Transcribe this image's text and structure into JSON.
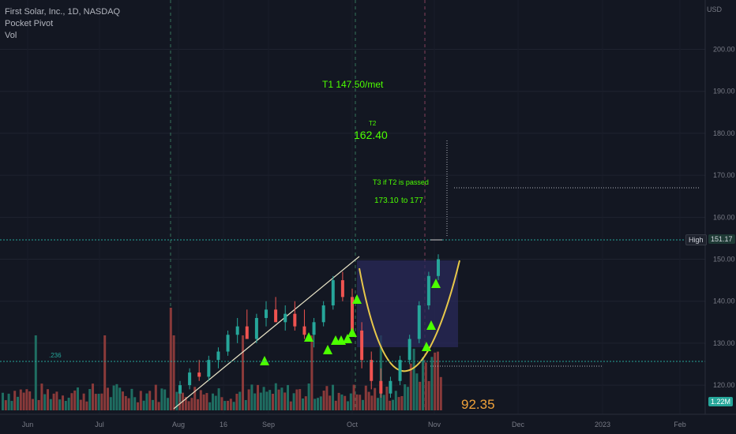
{
  "legend": {
    "symbol": "First Solar, Inc., 1D, NASDAQ",
    "indicator": "Pocket Pivot",
    "volume": "Vol"
  },
  "axis_unit": "USD",
  "high_label": "High",
  "high_value": "151.17",
  "volume_value": "1.22M",
  "fib_label": ".236",
  "colors": {
    "background": "#131722",
    "up": "#26a69a",
    "down": "#ef5350",
    "annotation": "#4cff00",
    "cup_fill": "#2a2a5a",
    "cup_curve": "#e8c84a",
    "trendline": "#e8e3c6",
    "dotted": "#b2b5be"
  },
  "annotations": {
    "t1": "T1 147.50/met",
    "t2_label": "T2",
    "t2_value": "162.40",
    "t3_label": "T3 if T2 is passed",
    "t3_range_a": "173.10",
    "t3_range_b": "to 177",
    "bottom_value": "92.35"
  },
  "chart_data": {
    "type": "candlestick",
    "title": "First Solar, Inc., 1D, NASDAQ",
    "y_axis": {
      "range": [
        114,
        208
      ],
      "ticks": [
        120,
        130,
        140,
        150,
        160,
        170,
        180,
        190,
        200
      ]
    },
    "x_ticks": [
      "Jun",
      "Jul",
      "Aug",
      "16",
      "Sep",
      "Oct",
      "Nov",
      "Dec",
      "2023",
      "Feb"
    ],
    "levels": {
      "high": 151.17,
      "fib_236": 120,
      "t3_line": 164.5,
      "t2_target_marker": 177
    },
    "series": [
      {
        "name": "price",
        "ohlc_approx": [
          [
            118,
            121,
            116,
            120
          ],
          [
            120,
            124,
            119,
            123
          ],
          [
            123,
            126,
            121,
            122
          ],
          [
            122,
            127,
            121,
            126
          ],
          [
            126,
            129,
            124,
            128
          ],
          [
            128,
            133,
            127,
            132
          ],
          [
            132,
            136,
            130,
            134
          ],
          [
            134,
            138,
            132,
            131
          ],
          [
            131,
            137,
            130,
            136
          ],
          [
            136,
            140,
            134,
            138
          ],
          [
            138,
            141,
            135,
            135
          ],
          [
            135,
            139,
            133,
            137
          ],
          [
            137,
            140,
            133,
            134
          ],
          [
            134,
            138,
            131,
            132
          ],
          [
            132,
            136,
            129,
            135
          ],
          [
            135,
            140,
            134,
            139
          ],
          [
            139,
            146,
            138,
            145
          ],
          [
            145,
            147,
            140,
            141
          ],
          [
            141,
            143,
            132,
            133
          ],
          [
            133,
            135,
            124,
            126
          ],
          [
            126,
            128,
            119,
            121
          ],
          [
            121,
            124,
            117,
            118
          ],
          [
            118,
            122,
            117,
            121
          ],
          [
            121,
            127,
            120,
            126
          ],
          [
            126,
            132,
            125,
            131
          ],
          [
            131,
            140,
            130,
            139
          ],
          [
            139,
            147,
            138,
            146
          ],
          [
            146,
            151.17,
            145,
            150
          ]
        ]
      }
    ],
    "volume": {
      "last": "1.22M"
    }
  }
}
